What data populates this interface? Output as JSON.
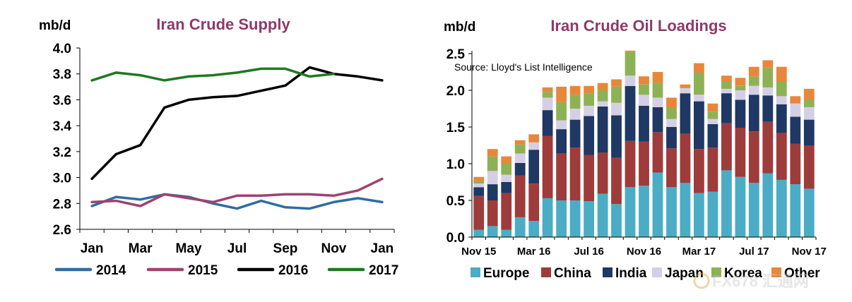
{
  "colors": {
    "title": "#8E3A69",
    "axis": "#000000",
    "y2014": "#2E6DA4",
    "y2015": "#A0426E",
    "y2016": "#000000",
    "y2017": "#1E7A1E",
    "europe": "#4BACC6",
    "china": "#9E3B3B",
    "india": "#1F3864",
    "japan": "#D5CFE6",
    "korea": "#8DB255",
    "other": "#E8873A"
  },
  "watermark": {
    "text": "FX678 汇通网"
  },
  "chart_data": [
    {
      "type": "line",
      "title": "Iran Crude Supply",
      "ylabel": "mb/d",
      "xlabel": "",
      "ylim": [
        2.6,
        4.0
      ],
      "ytick_labels": [
        "2.6",
        "2.8",
        "3.0",
        "3.2",
        "3.4",
        "3.6",
        "3.8",
        "4.0"
      ],
      "ytick_values": [
        2.6,
        2.8,
        3.0,
        3.2,
        3.4,
        3.6,
        3.8,
        4.0
      ],
      "xtick_labels": [
        "Jan",
        "Mar",
        "May",
        "Jul",
        "Sep",
        "Nov",
        "Jan"
      ],
      "xtick_positions": [
        0,
        2,
        4,
        6,
        8,
        10,
        12
      ],
      "x_count": 13,
      "grid": false,
      "legend": "bottom",
      "series": [
        {
          "name": "2014",
          "color_key": "y2014",
          "values": [
            2.78,
            2.85,
            2.83,
            2.87,
            2.85,
            2.8,
            2.76,
            2.82,
            2.77,
            2.76,
            2.81,
            2.84,
            2.81
          ]
        },
        {
          "name": "2015",
          "color_key": "y2015",
          "values": [
            2.81,
            2.82,
            2.78,
            2.87,
            2.84,
            2.81,
            2.86,
            2.86,
            2.87,
            2.87,
            2.86,
            2.9,
            2.99
          ]
        },
        {
          "name": "2016",
          "color_key": "y2016",
          "values": [
            2.99,
            3.18,
            3.25,
            3.54,
            3.6,
            3.62,
            3.63,
            3.67,
            3.71,
            3.85,
            3.8,
            3.78,
            3.75
          ]
        },
        {
          "name": "2017",
          "color_key": "y2017",
          "values": [
            3.75,
            3.81,
            3.79,
            3.75,
            3.78,
            3.79,
            3.81,
            3.84,
            3.84,
            3.78,
            3.8
          ]
        }
      ]
    },
    {
      "type": "bar",
      "stacked": true,
      "title": "Iran Crude Oil Loadings",
      "ylabel": "mb/d",
      "xlabel": "",
      "annotation": "Source: Lloyd's List Intelligence",
      "ylim": [
        0.0,
        2.5
      ],
      "ytick_labels": [
        "0.0",
        "0.5",
        "1.0",
        "1.5",
        "2.0",
        "2.5"
      ],
      "ytick_values": [
        0.0,
        0.5,
        1.0,
        1.5,
        2.0,
        2.5
      ],
      "categories": [
        "Nov 15",
        "Dec 15",
        "Jan 16",
        "Feb 16",
        "Mar 16",
        "Apr 16",
        "May 16",
        "Jun 16",
        "Jul 16",
        "Aug 16",
        "Sep 16",
        "Oct 16",
        "Nov 16",
        "Dec 16",
        "Jan 17",
        "Feb 17",
        "Mar 17",
        "Apr 17",
        "May 17",
        "Jun 17",
        "Jul 17",
        "Aug 17",
        "Sep 17",
        "Oct 17",
        "Nov 17"
      ],
      "xtick_labels": [
        "Nov 15",
        "Mar 16",
        "Jul 16",
        "Nov 16",
        "Mar 17",
        "Jul 17",
        "Nov 17"
      ],
      "xtick_positions": [
        0,
        4,
        8,
        12,
        16,
        20,
        24
      ],
      "grid": false,
      "legend": "bottom",
      "series": [
        {
          "name": "Europe",
          "color_key": "europe",
          "values": [
            0.1,
            0.15,
            0.1,
            0.27,
            0.22,
            0.53,
            0.5,
            0.5,
            0.49,
            0.59,
            0.45,
            0.68,
            0.7,
            0.88,
            0.68,
            0.74,
            0.6,
            0.62,
            0.91,
            0.82,
            0.74,
            0.87,
            0.78,
            0.72,
            0.66
          ]
        },
        {
          "name": "China",
          "color_key": "china",
          "values": [
            0.46,
            0.35,
            0.5,
            0.57,
            0.51,
            0.85,
            0.64,
            0.72,
            0.63,
            0.56,
            0.63,
            0.63,
            0.6,
            0.55,
            0.53,
            0.67,
            0.6,
            0.6,
            0.64,
            0.67,
            0.7,
            0.7,
            0.64,
            0.55,
            0.59
          ]
        },
        {
          "name": "India",
          "color_key": "india",
          "values": [
            0.12,
            0.22,
            0.15,
            0.17,
            0.46,
            0.35,
            0.33,
            0.38,
            0.53,
            0.63,
            0.58,
            0.75,
            0.49,
            0.34,
            0.29,
            0.55,
            0.65,
            0.32,
            0.41,
            0.38,
            0.5,
            0.36,
            0.39,
            0.37,
            0.35
          ]
        },
        {
          "name": "Japan",
          "color_key": "japan",
          "values": [
            0.05,
            0.18,
            0.1,
            0.13,
            0.1,
            0.17,
            0.12,
            0.15,
            0.14,
            0.07,
            0.17,
            0.14,
            0.15,
            0.13,
            0.11,
            0.07,
            0.09,
            0.07,
            0.06,
            0.13,
            0.12,
            0.11,
            0.11,
            0.18,
            0.17
          ]
        },
        {
          "name": "Korea",
          "color_key": "korea",
          "values": [
            0.03,
            0.2,
            0.15,
            0.12,
            0.0,
            0.08,
            0.25,
            0.19,
            0.17,
            0.15,
            0.22,
            0.32,
            0.14,
            0.2,
            0.15,
            0.0,
            0.3,
            0.1,
            0.1,
            0.06,
            0.13,
            0.27,
            0.2,
            0.0,
            0.1
          ]
        },
        {
          "name": "Other",
          "color_key": "other",
          "values": [
            0.06,
            0.1,
            0.1,
            0.06,
            0.11,
            0.06,
            0.21,
            0.12,
            0.1,
            0.1,
            0.1,
            0.02,
            0.11,
            0.15,
            0.14,
            0.05,
            0.13,
            0.11,
            0.08,
            0.11,
            0.13,
            0.1,
            0.2,
            0.1,
            0.15
          ]
        }
      ]
    }
  ]
}
